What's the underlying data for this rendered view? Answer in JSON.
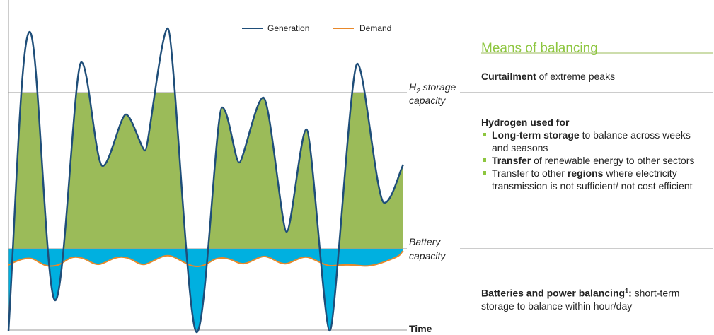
{
  "legend": {
    "generation": "Generation",
    "demand": "Demand"
  },
  "labels": {
    "h2": {
      "symbol": "H",
      "subscript": "2",
      "text": " storage",
      "line2": "capacity"
    },
    "battery": {
      "line1": "Battery",
      "line2": "capacity"
    },
    "time": "Time"
  },
  "panel": {
    "title": "Means of balancing",
    "curtailment": {
      "bold": "Curtailment",
      "text": " of extreme peaks"
    },
    "hydrogen": {
      "heading": "Hydrogen used for",
      "bullets": [
        [
          {
            "bold": "Long-term storage"
          },
          {
            "text": " to balance across weeks and seasons"
          }
        ],
        [
          {
            "bold": "Transfer"
          },
          {
            "text": " of renewable energy to other sectors"
          }
        ],
        [
          {
            "text": "Transfer to other "
          },
          {
            "bold": "regions"
          },
          {
            "text": " where electricity transmission is not sufficient/ not cost efficient"
          }
        ]
      ]
    },
    "batteries": {
      "bold": "Batteries and power balancing",
      "sup": "1",
      "colon": ":",
      "text": " short-term storage to balance within hour/day"
    }
  }
}
